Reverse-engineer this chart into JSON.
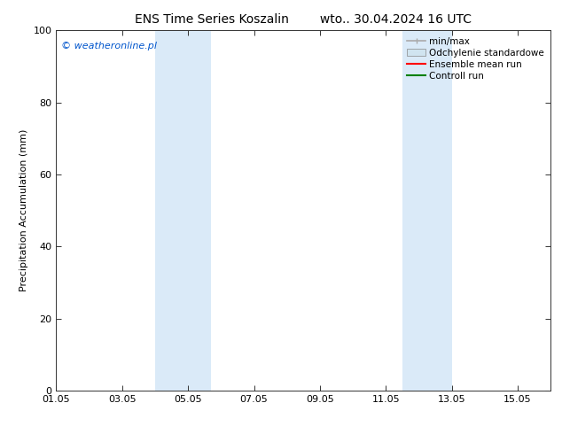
{
  "title": "ENS Time Series Koszalin        wto.. 30.04.2024 16 UTC",
  "ylabel": "Precipitation Accumulation (mm)",
  "watermark": "© weatheronline.pl",
  "watermark_color": "#0055cc",
  "background_color": "#ffffff",
  "plot_bg_color": "#ffffff",
  "ylim": [
    0,
    100
  ],
  "yticks": [
    0,
    20,
    40,
    60,
    80,
    100
  ],
  "xlim": [
    1.0,
    16.0
  ],
  "xtick_labels": [
    "01.05",
    "03.05",
    "05.05",
    "07.05",
    "09.05",
    "11.05",
    "13.05",
    "15.05"
  ],
  "xtick_positions": [
    1,
    3,
    5,
    7,
    9,
    11,
    13,
    15
  ],
  "shaded_regions": [
    {
      "x_start": 4.0,
      "x_end": 5.7,
      "color": "#daeaf8"
    },
    {
      "x_start": 11.5,
      "x_end": 13.0,
      "color": "#daeaf8"
    }
  ],
  "legend_items": [
    {
      "label": "min/max",
      "color": "#aaaaaa",
      "type": "hline"
    },
    {
      "label": "Odchylenie standardowe",
      "color": "#d0e4f0",
      "type": "band"
    },
    {
      "label": "Ensemble mean run",
      "color": "#ff0000",
      "type": "line"
    },
    {
      "label": "Controll run",
      "color": "#008000",
      "type": "line"
    }
  ],
  "title_fontsize": 10,
  "axis_label_fontsize": 8,
  "tick_fontsize": 8,
  "watermark_fontsize": 8,
  "legend_fontsize": 7.5
}
